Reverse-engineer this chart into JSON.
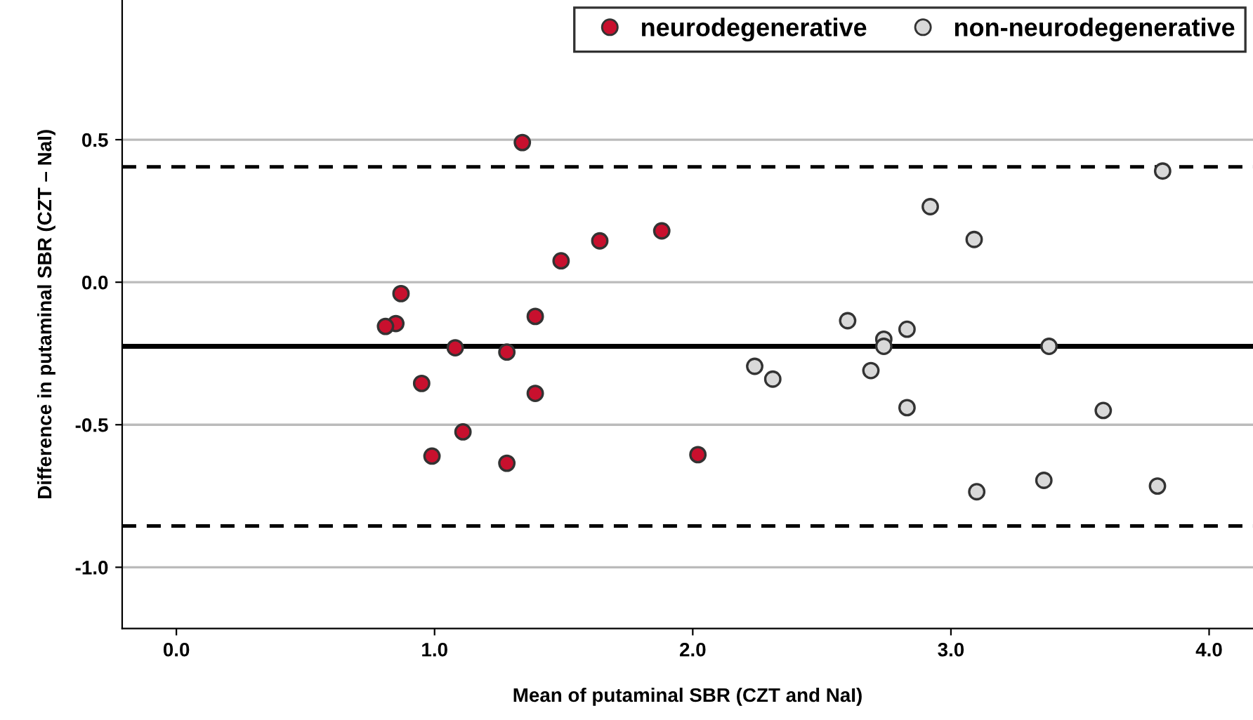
{
  "chart_data": {
    "type": "scatter",
    "xlabel": "Mean of putaminal SBR (CZT and NaI)",
    "ylabel": "Difference in putaminal SBR (CZT – NaI)",
    "xlim": [
      -0.21,
      4.17
    ],
    "ylim": [
      -1.215,
      0.99
    ],
    "xticks": [
      {
        "value": 0,
        "label": "0.0"
      },
      {
        "value": 1,
        "label": "1.0"
      },
      {
        "value": 2,
        "label": "2.0"
      },
      {
        "value": 3,
        "label": "3.0"
      },
      {
        "value": 4,
        "label": "4.0"
      }
    ],
    "yticks": [
      {
        "value": 0.5,
        "label": "0.5"
      },
      {
        "value": 0,
        "label": "0.0"
      },
      {
        "value": -0.5,
        "label": "-0.5"
      },
      {
        "value": -1,
        "label": "-1.0"
      }
    ],
    "grid": "y",
    "legend": "top right",
    "marker": "circle",
    "ref_lines": [
      {
        "axis": "y",
        "value": -0.225,
        "line_style": "solid",
        "color": "#000000"
      },
      {
        "axis": "y",
        "value": 0.405,
        "line_style": "dashed",
        "color": "#000000"
      },
      {
        "axis": "y",
        "value": -0.855,
        "line_style": "dashed",
        "color": "#000000"
      }
    ],
    "series": [
      {
        "name": "neurodegenerative",
        "color": "#c8102e",
        "x": [
          1.34,
          1.88,
          1.64,
          1.49,
          0.87,
          0.85,
          0.81,
          1.39,
          1.08,
          1.28,
          0.95,
          1.39,
          1.11,
          0.99,
          1.28,
          2.02
        ],
        "values": [
          0.49,
          0.18,
          0.145,
          0.075,
          -0.04,
          -0.145,
          -0.155,
          -0.12,
          -0.23,
          -0.245,
          -0.355,
          -0.39,
          -0.525,
          -0.61,
          -0.635,
          -0.605
        ]
      },
      {
        "name": "non-neurodegenerative",
        "color": "#d9d9d9",
        "x": [
          3.82,
          2.92,
          3.09,
          2.6,
          2.83,
          2.74,
          2.74,
          3.38,
          2.69,
          2.24,
          2.31,
          2.83,
          3.59,
          3.1,
          3.36,
          3.8
        ],
        "values": [
          0.39,
          0.265,
          0.15,
          -0.135,
          -0.165,
          -0.2,
          -0.225,
          -0.225,
          -0.31,
          -0.295,
          -0.34,
          -0.44,
          -0.45,
          -0.735,
          -0.695,
          -0.715
        ]
      }
    ]
  }
}
